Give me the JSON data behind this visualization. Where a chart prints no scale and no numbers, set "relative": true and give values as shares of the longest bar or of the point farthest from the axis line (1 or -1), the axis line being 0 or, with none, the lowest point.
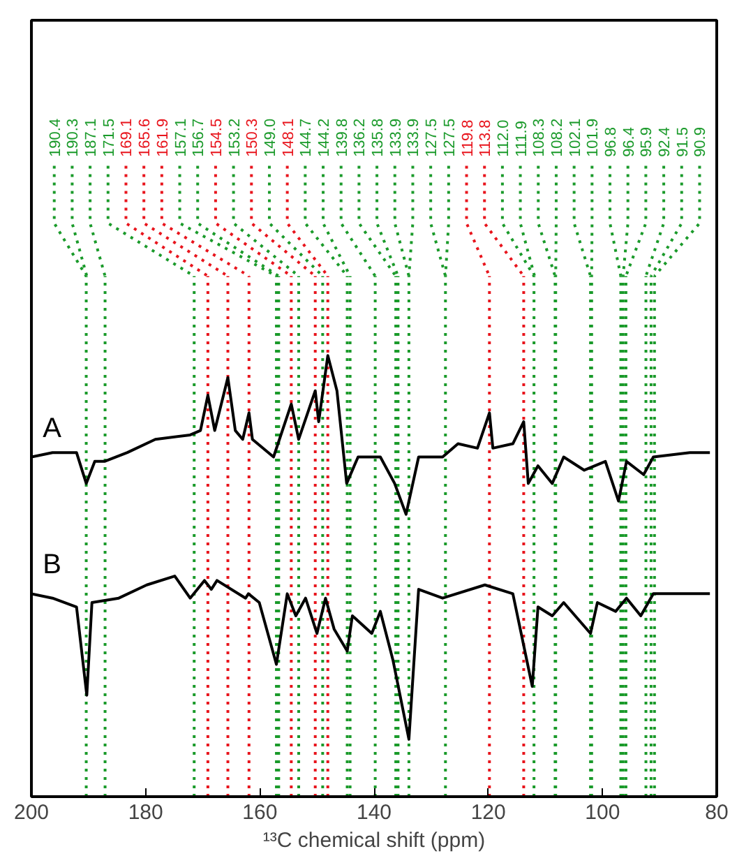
{
  "chart_data": {
    "type": "line",
    "relative": true,
    "xlabel": "¹³C chemical shift (ppm)",
    "xlim": [
      200,
      80
    ],
    "xticks": [
      200,
      180,
      160,
      140,
      120,
      100,
      80
    ],
    "grid": false,
    "legend": false,
    "line_style": "solid",
    "marker": "none",
    "series": [
      {
        "name": "A",
        "color": "#000000",
        "x": [
          200.0,
          196.3,
          192.1,
          190.4,
          188.9,
          187.2,
          183.2,
          178.3,
          172.2,
          170.4,
          169.1,
          167.9,
          165.6,
          164.3,
          163.0,
          161.9,
          161.3,
          157.6,
          154.5,
          153.2,
          150.3,
          149.7,
          148.1,
          146.5,
          144.8,
          142.8,
          139.6,
          138.9,
          136.4,
          134.4,
          132.2,
          128.0,
          125.3,
          121.9,
          119.8,
          119.2,
          115.7,
          113.8,
          113.0,
          111.3,
          108.8,
          106.8,
          103.2,
          99.5,
          97.2,
          95.8,
          92.8,
          91.1,
          84.7,
          81.2
        ],
        "values": [
          0.77,
          0.78,
          0.78,
          0.71,
          0.76,
          0.76,
          0.78,
          0.81,
          0.82,
          0.83,
          0.91,
          0.83,
          0.95,
          0.83,
          0.81,
          0.87,
          0.81,
          0.77,
          0.89,
          0.81,
          0.92,
          0.85,
          1.0,
          0.92,
          0.71,
          0.77,
          0.77,
          0.77,
          0.71,
          0.64,
          0.77,
          0.77,
          0.8,
          0.79,
          0.87,
          0.79,
          0.8,
          0.85,
          0.71,
          0.75,
          0.71,
          0.77,
          0.74,
          0.76,
          0.67,
          0.76,
          0.73,
          0.77,
          0.78,
          0.78
        ]
      },
      {
        "name": "B",
        "color": "#000000",
        "x": [
          200.0,
          196.3,
          192.1,
          190.3,
          189.4,
          184.7,
          179.8,
          174.9,
          172.2,
          169.7,
          168.5,
          167.5,
          162.5,
          162.0,
          160.1,
          157.1,
          155.2,
          153.7,
          152.0,
          150.0,
          148.5,
          147.0,
          144.7,
          143.8,
          140.4,
          138.9,
          136.7,
          133.9,
          132.2,
          128.0,
          120.6,
          115.7,
          112.3,
          111.3,
          108.8,
          106.8,
          102.1,
          100.9,
          97.7,
          95.8,
          93.3,
          91.1,
          81.2
        ],
        "values": [
          0.46,
          0.45,
          0.43,
          0.23,
          0.44,
          0.45,
          0.48,
          0.5,
          0.45,
          0.49,
          0.47,
          0.49,
          0.45,
          0.46,
          0.44,
          0.3,
          0.46,
          0.41,
          0.45,
          0.37,
          0.45,
          0.38,
          0.33,
          0.41,
          0.37,
          0.42,
          0.31,
          0.13,
          0.47,
          0.45,
          0.48,
          0.46,
          0.25,
          0.43,
          0.41,
          0.44,
          0.37,
          0.44,
          0.42,
          0.45,
          0.41,
          0.46,
          0.46
        ]
      }
    ],
    "ref_lines": [
      {
        "axis": "x",
        "value": 190.4,
        "label": "190.4",
        "color": "#1a9a2a",
        "line_style": "dotted"
      },
      {
        "axis": "x",
        "value": 187.1,
        "label": "187.1",
        "color": "#1a9a2a",
        "line_style": "dotted"
      },
      {
        "axis": "x",
        "value": 171.5,
        "label": "171.5",
        "color": "#1a9a2a",
        "line_style": "dotted"
      },
      {
        "axis": "x",
        "value": 169.1,
        "label": "169.1",
        "color": "#e8141c",
        "line_style": "dotted"
      },
      {
        "axis": "x",
        "value": 165.6,
        "label": "165.6",
        "color": "#e8141c",
        "line_style": "dotted"
      },
      {
        "axis": "x",
        "value": 161.9,
        "label": "161.9",
        "color": "#e8141c",
        "line_style": "dotted"
      },
      {
        "axis": "x",
        "value": 157.1,
        "label": "157.1",
        "color": "#1a9a2a",
        "line_style": "dotted"
      },
      {
        "axis": "x",
        "value": 156.7,
        "label": "156.7",
        "color": "#1a9a2a",
        "line_style": "dotted"
      },
      {
        "axis": "x",
        "value": 154.5,
        "label": "154.5",
        "color": "#e8141c",
        "line_style": "dotted"
      },
      {
        "axis": "x",
        "value": 153.2,
        "label": "153.2",
        "color": "#1a9a2a",
        "line_style": "dotted"
      },
      {
        "axis": "x",
        "value": 150.3,
        "label": "150.3",
        "color": "#e8141c",
        "line_style": "dotted"
      },
      {
        "axis": "x",
        "value": 149.0,
        "label": "149.0",
        "color": "#1a9a2a",
        "line_style": "dotted"
      },
      {
        "axis": "x",
        "value": 148.1,
        "label": "148.1",
        "color": "#e8141c",
        "line_style": "dotted"
      },
      {
        "axis": "x",
        "value": 144.7,
        "label": "144.7",
        "color": "#1a9a2a",
        "line_style": "dotted"
      },
      {
        "axis": "x",
        "value": 144.2,
        "label": "144.2",
        "color": "#1a9a2a",
        "line_style": "dotted"
      },
      {
        "axis": "x",
        "value": 139.8,
        "label": "139.8",
        "color": "#1a9a2a",
        "line_style": "dotted"
      },
      {
        "axis": "x",
        "value": 136.2,
        "label": "136.2",
        "color": "#1a9a2a",
        "line_style": "dotted"
      },
      {
        "axis": "x",
        "value": 135.8,
        "label": "135.8",
        "color": "#1a9a2a",
        "line_style": "dotted"
      },
      {
        "axis": "x",
        "value": 133.9,
        "label": "133.9",
        "color": "#1a9a2a",
        "line_style": "dotted"
      },
      {
        "axis": "x",
        "value": 127.5,
        "label": "127.5",
        "color": "#1a9a2a",
        "line_style": "dotted"
      },
      {
        "axis": "x",
        "value": 119.8,
        "label": "119.8",
        "color": "#e8141c",
        "line_style": "dotted"
      },
      {
        "axis": "x",
        "value": 113.8,
        "label": "113.8",
        "color": "#e8141c",
        "line_style": "dotted"
      },
      {
        "axis": "x",
        "value": 112.0,
        "label": "112.0",
        "color": "#1a9a2a",
        "line_style": "dotted"
      },
      {
        "axis": "x",
        "value": 108.3,
        "label": "108.3",
        "color": "#1a9a2a",
        "line_style": "dotted"
      },
      {
        "axis": "x",
        "value": 108.2,
        "label": "108.2",
        "color": "#1a9a2a",
        "line_style": "dotted"
      },
      {
        "axis": "x",
        "value": 102.1,
        "label": "102.1",
        "color": "#1a9a2a",
        "line_style": "dotted"
      },
      {
        "axis": "x",
        "value": 101.9,
        "label": "101.9",
        "color": "#1a9a2a",
        "line_style": "dotted"
      },
      {
        "axis": "x",
        "value": 96.8,
        "label": "96.8",
        "color": "#1a9a2a",
        "line_style": "dotted"
      },
      {
        "axis": "x",
        "value": 96.4,
        "label": "96.4",
        "color": "#1a9a2a",
        "line_style": "dotted"
      },
      {
        "axis": "x",
        "value": 95.9,
        "label": "95.9",
        "color": "#1a9a2a",
        "line_style": "dotted"
      },
      {
        "axis": "x",
        "value": 92.4,
        "label": "92.4",
        "color": "#1a9a2a",
        "line_style": "dotted"
      },
      {
        "axis": "x",
        "value": 91.5,
        "label": "91.5",
        "color": "#1a9a2a",
        "line_style": "dotted"
      },
      {
        "axis": "x",
        "value": 90.9,
        "label": "90.9",
        "color": "#1a9a2a",
        "line_style": "dotted"
      }
    ],
    "annotations": [
      {
        "text": "190.3",
        "x": 190.3
      },
      {
        "text": "133.9",
        "x": 133.9
      },
      {
        "text": "127.5",
        "x": 127.5
      },
      {
        "text": "111.9",
        "x": 111.9
      }
    ]
  }
}
